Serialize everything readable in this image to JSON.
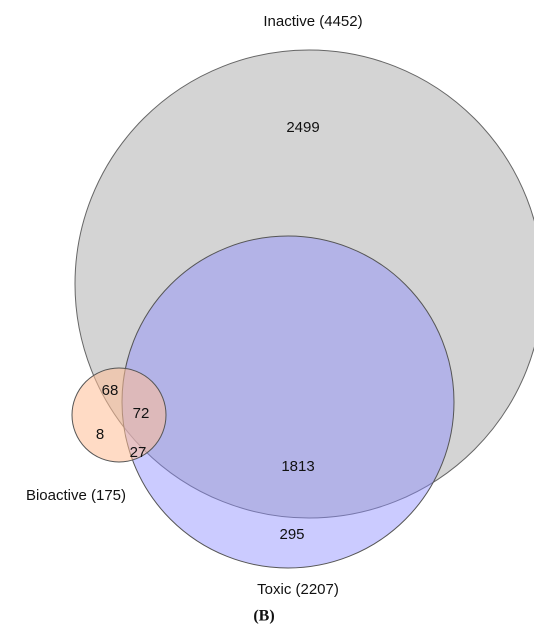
{
  "sets": [
    {
      "label": "Inactive (4452)"
    },
    {
      "label": "Toxic (2207)"
    },
    {
      "label": "Bioactive (175)"
    }
  ],
  "regions": [
    2499,
    1813,
    295,
    68,
    72,
    8,
    27
  ],
  "caption": "(B)"
}
